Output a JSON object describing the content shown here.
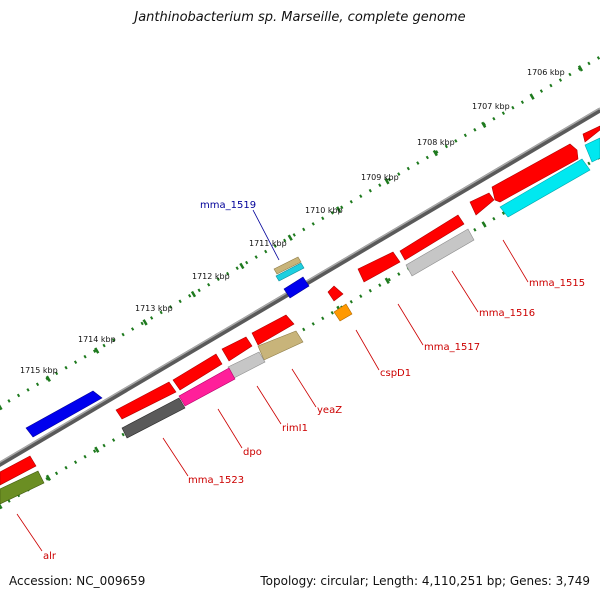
{
  "header": {
    "title": "Janthinobacterium sp. Marseille, complete genome"
  },
  "footer": {
    "accession": "Accession: NC_009659",
    "summary": "Topology: circular; Length: 4,110,251 bp; Genes: 3,749"
  },
  "colors": {
    "backbone": "#8a8a8a",
    "ticks": "#1e7a1e",
    "label_red": "#cc0000",
    "label_blue": "#000099"
  },
  "kbp_markers": [
    "1706 kbp",
    "1707 kbp",
    "1708 kbp",
    "1709 kbp",
    "1710 kbp",
    "1711 kbp",
    "1712 kbp",
    "1713 kbp",
    "1714 kbp",
    "1715 kbp"
  ],
  "gene_labels": [
    {
      "name": "mma_1515",
      "color": "#cc0000"
    },
    {
      "name": "mma_1516",
      "color": "#cc0000"
    },
    {
      "name": "mma_1517",
      "color": "#cc0000"
    },
    {
      "name": "cspD1",
      "color": "#cc0000"
    },
    {
      "name": "yeaZ",
      "color": "#cc0000"
    },
    {
      "name": "rimI1",
      "color": "#cc0000"
    },
    {
      "name": "dpo",
      "color": "#cc0000"
    },
    {
      "name": "mma_1523",
      "color": "#cc0000"
    },
    {
      "name": "alr",
      "color": "#cc0000"
    },
    {
      "name": "mma_1519",
      "color": "#000099"
    }
  ]
}
